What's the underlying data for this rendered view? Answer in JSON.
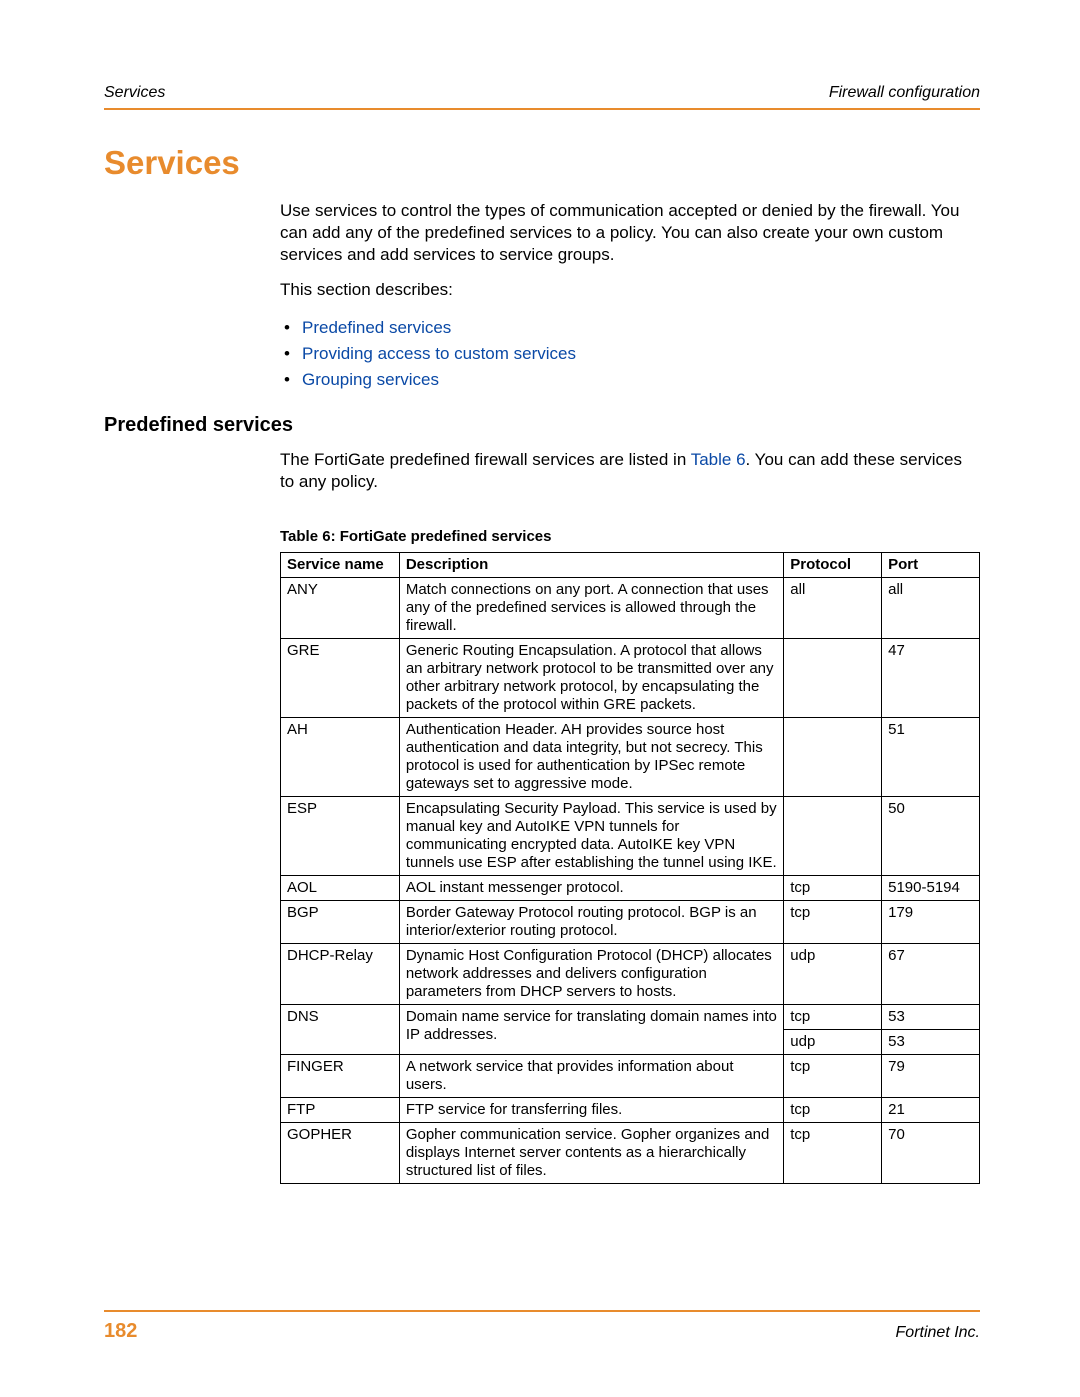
{
  "header": {
    "left": "Services",
    "right": "Firewall configuration"
  },
  "h1": "Services",
  "intro": "Use services to control the types of communication accepted or denied by the firewall. You can add any of the predefined services to a policy. You can also create your own custom services and add services to service groups.",
  "describes": "This section describes:",
  "toc": {
    "items": [
      "Predefined services",
      "Providing access to custom services",
      "Grouping services"
    ]
  },
  "h2": "Predefined services",
  "para2_a": "The FortiGate predefined firewall services are listed in ",
  "para2_link": "Table 6",
  "para2_b": ". You can add these services to any policy.",
  "table": {
    "caption": "Table 6: FortiGate predefined services",
    "columns": [
      "Service name",
      "Description",
      "Protocol",
      "Port"
    ],
    "rows": [
      {
        "name": "ANY",
        "desc": "Match connections on any port. A connection that uses any of the predefined services is allowed through the firewall.",
        "proto": "all",
        "port": "all",
        "rowspan": 1
      },
      {
        "name": "GRE",
        "desc": "Generic Routing Encapsulation. A protocol that allows an arbitrary network protocol to be transmitted over any other arbitrary network protocol, by encapsulating the packets of the protocol within GRE packets.",
        "proto": "",
        "port": "47",
        "rowspan": 1
      },
      {
        "name": "AH",
        "desc": "Authentication Header. AH provides source host authentication and data integrity, but not secrecy. This protocol is used for authentication by IPSec remote gateways set to aggressive mode.",
        "proto": "",
        "port": "51",
        "rowspan": 1
      },
      {
        "name": "ESP",
        "desc": "Encapsulating Security Payload. This service is used by manual key and AutoIKE VPN tunnels for communicating encrypted data. AutoIKE key VPN tunnels use ESP after establishing the tunnel using IKE.",
        "proto": "",
        "port": "50",
        "rowspan": 1
      },
      {
        "name": "AOL",
        "desc": "AOL instant messenger protocol.",
        "proto": "tcp",
        "port": "5190-5194",
        "rowspan": 1
      },
      {
        "name": "BGP",
        "desc": "Border Gateway Protocol routing protocol. BGP is an interior/exterior routing protocol.",
        "proto": "tcp",
        "port": "179",
        "rowspan": 1
      },
      {
        "name": "DHCP-Relay",
        "desc": "Dynamic Host Configuration Protocol (DHCP) allocates network addresses and delivers configuration parameters from DHCP servers to hosts.",
        "proto": "udp",
        "port": "67",
        "rowspan": 1
      },
      {
        "name": "DNS",
        "desc": "Domain name service for translating domain names into IP addresses.",
        "proto": "tcp",
        "port": "53",
        "rowspan": 2,
        "proto2": "udp",
        "port2": "53"
      },
      {
        "name": "FINGER",
        "desc": "A network service that provides information about users.",
        "proto": "tcp",
        "port": "79",
        "rowspan": 1
      },
      {
        "name": "FTP",
        "desc": "FTP service for transferring files.",
        "proto": "tcp",
        "port": "21",
        "rowspan": 1
      },
      {
        "name": "GOPHER",
        "desc": "Gopher communication service. Gopher organizes and displays Internet server contents as a hierarchically structured list of files.",
        "proto": "tcp",
        "port": "70",
        "rowspan": 1
      }
    ]
  },
  "footer": {
    "page": "182",
    "right": "Fortinet Inc."
  },
  "colors": {
    "accent": "#e88b2d",
    "link": "#0a49a6"
  }
}
